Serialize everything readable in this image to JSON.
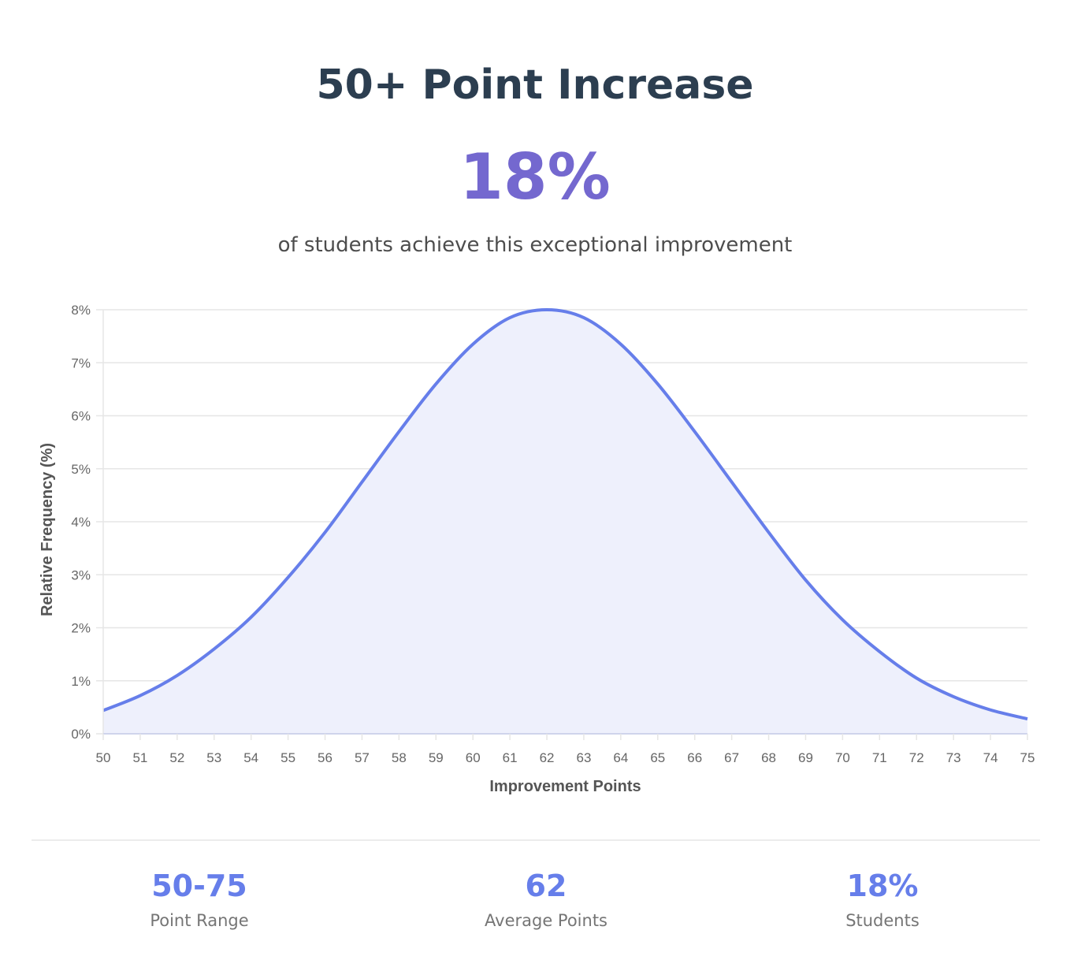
{
  "header": {
    "title": "50+ Point Increase",
    "big_value": "18%",
    "subtitle": "of students achieve this exceptional improvement"
  },
  "chart_data": {
    "type": "area",
    "xlabel": "Improvement Points",
    "ylabel": "Relative Frequency (%)",
    "x": [
      50,
      51,
      52,
      53,
      54,
      55,
      56,
      57,
      58,
      59,
      60,
      61,
      62,
      63,
      64,
      65,
      66,
      67,
      68,
      69,
      70,
      71,
      72,
      73,
      74,
      75
    ],
    "y": [
      0.44,
      0.72,
      1.1,
      1.6,
      2.2,
      2.95,
      3.8,
      4.75,
      5.7,
      6.6,
      7.35,
      7.85,
      8.0,
      7.85,
      7.35,
      6.6,
      5.7,
      4.75,
      3.8,
      2.9,
      2.15,
      1.55,
      1.05,
      0.7,
      0.45,
      0.28
    ],
    "xlim": [
      50,
      75
    ],
    "ylim": [
      0,
      8
    ],
    "y_ticks": [
      0,
      1,
      2,
      3,
      4,
      5,
      6,
      7,
      8
    ],
    "y_tick_labels": [
      "0%",
      "1%",
      "2%",
      "3%",
      "4%",
      "5%",
      "6%",
      "7%",
      "8%"
    ],
    "grid": true,
    "colors": {
      "line": "#667eea",
      "fill": "#eef0fc",
      "grid": "#e6e6e6",
      "axis": "#cfd4ec"
    }
  },
  "stats": [
    {
      "value": "50-75",
      "label": "Point Range"
    },
    {
      "value": "62",
      "label": "Average Points"
    },
    {
      "value": "18%",
      "label": "Students"
    }
  ]
}
